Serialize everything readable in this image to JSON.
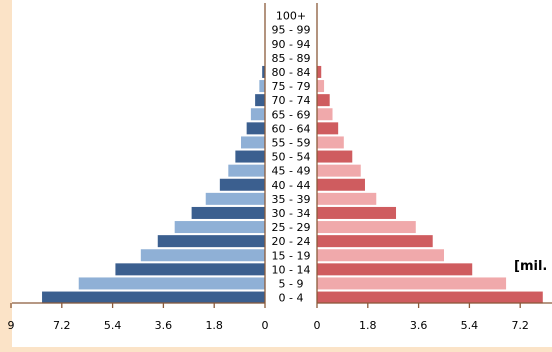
{
  "chart_data": {
    "type": "bar",
    "subtype": "population-pyramid",
    "categories": [
      "0 - 4",
      "5 - 9",
      "10 - 14",
      "15 - 19",
      "20 - 24",
      "25 - 29",
      "30 - 34",
      "35 - 39",
      "40 - 44",
      "45 - 49",
      "50 - 54",
      "55 - 59",
      "60 - 64",
      "65 - 69",
      "70 - 74",
      "75 - 79",
      "80 - 84",
      "85 - 89",
      "90 - 94",
      "95 - 99",
      "100+"
    ],
    "series": [
      {
        "side": "left",
        "color_dark": "#3b5f8f",
        "color_light": "#8fb0d6",
        "values": [
          7.9,
          6.6,
          5.3,
          4.4,
          3.8,
          3.2,
          2.6,
          2.1,
          1.6,
          1.3,
          1.05,
          0.85,
          0.65,
          0.5,
          0.35,
          0.2,
          0.1,
          0,
          0,
          0,
          0
        ]
      },
      {
        "side": "right",
        "color_dark": "#cf5c5f",
        "color_light": "#f0a9ab",
        "values": [
          8.0,
          6.7,
          5.5,
          4.5,
          4.1,
          3.5,
          2.8,
          2.1,
          1.7,
          1.55,
          1.25,
          0.95,
          0.75,
          0.55,
          0.45,
          0.25,
          0.15,
          0,
          0,
          0,
          0
        ]
      }
    ],
    "x_ticks_left": [
      "9",
      "7.2",
      "5.4",
      "3.6",
      "1.8",
      "0"
    ],
    "x_ticks_right": [
      "0",
      "1.8",
      "3.6",
      "5.4",
      "7.2"
    ],
    "xlim": [
      0,
      9
    ],
    "unit_label": "[mil.",
    "grid": false
  }
}
